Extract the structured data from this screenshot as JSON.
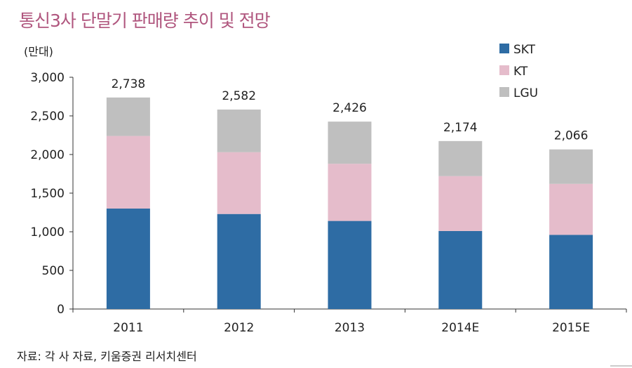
{
  "title": "통신3사 단말기 판매량 추이 및 전망",
  "source": "자료: 각 사 자료, 키움증권 리서치센터",
  "chart_data": {
    "type": "bar",
    "stacked": true,
    "title": "통신3사 단말기 판매량 추이 및 전망",
    "ylabel": "(만대)",
    "xlabel": "",
    "ylim": [
      0,
      3000
    ],
    "yticks": [
      "0",
      "500",
      "1,000",
      "1,500",
      "2,000",
      "2,500",
      "3,000"
    ],
    "categories": [
      "2011",
      "2012",
      "2013",
      "2014E",
      "2015E"
    ],
    "series": [
      {
        "name": "SKT",
        "color": "#2e6ca4",
        "values": [
          1300,
          1230,
          1140,
          1010,
          960
        ]
      },
      {
        "name": "KT",
        "color": "#e5bccb",
        "values": [
          940,
          800,
          740,
          710,
          660
        ]
      },
      {
        "name": "LGU",
        "color": "#bfbfbf",
        "values": [
          498,
          552,
          546,
          454,
          446
        ]
      }
    ],
    "totals": [
      "2,738",
      "2,582",
      "2,426",
      "2,174",
      "2,066"
    ],
    "legend": "top-right",
    "grid": false
  }
}
